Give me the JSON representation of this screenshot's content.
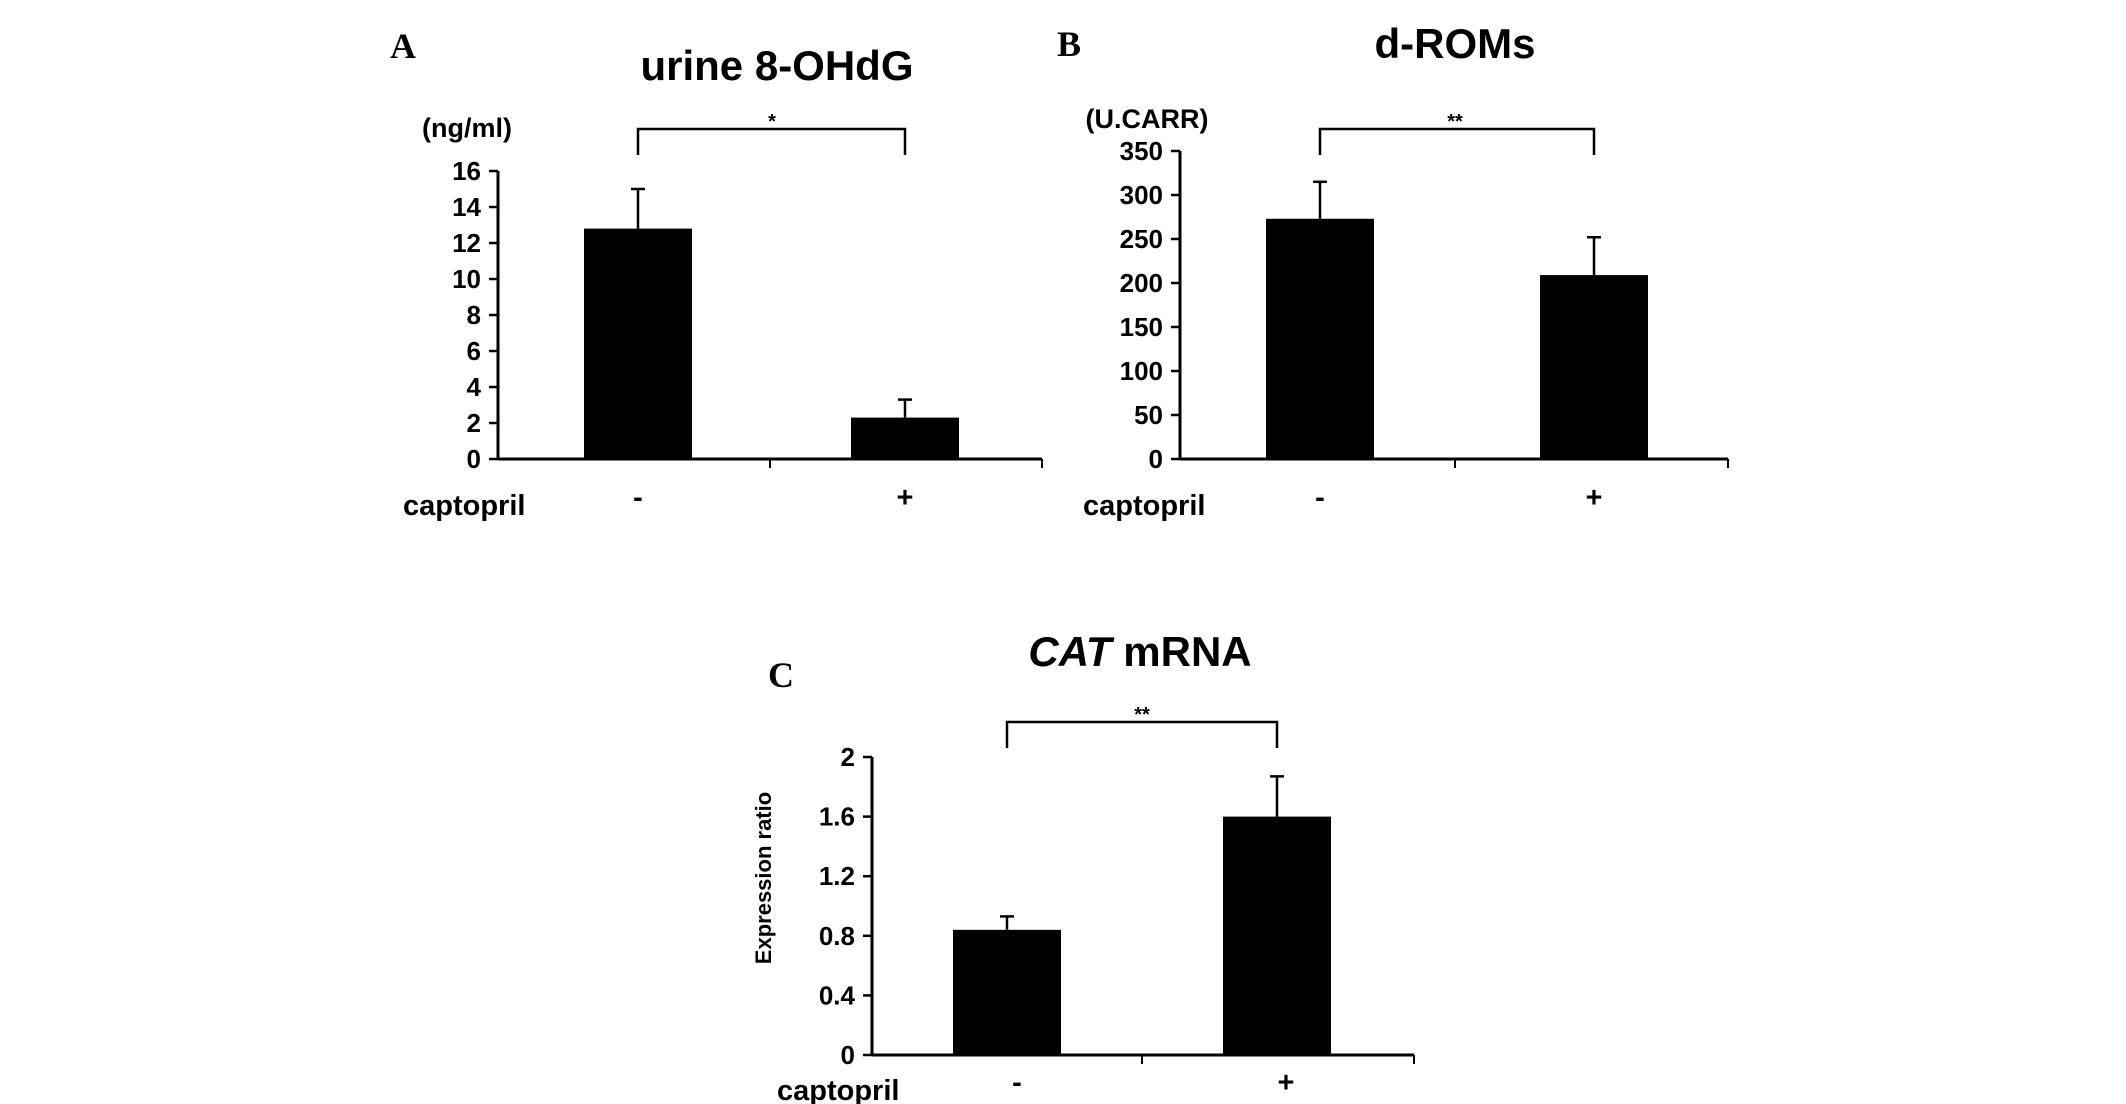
{
  "chart_data": [
    {
      "panel": "A",
      "type": "bar",
      "title": "urine 8-OHdG",
      "unit_label": "(ng/ml)",
      "xlabel": "captopril",
      "ylabel": "",
      "categories": [
        "-",
        "+"
      ],
      "values": [
        12.8,
        2.3
      ],
      "errors": [
        2.2,
        1.0
      ],
      "ylim": [
        0,
        16
      ],
      "yticks": [
        0,
        2,
        4,
        6,
        8,
        10,
        12,
        14,
        16
      ],
      "significance": "*",
      "bar_color": "#000000"
    },
    {
      "panel": "B",
      "type": "bar",
      "title": "d-ROMs",
      "unit_label": "(U.CARR)",
      "xlabel": "captopril",
      "ylabel": "",
      "categories": [
        "-",
        "+"
      ],
      "values": [
        273,
        209
      ],
      "errors": [
        42,
        43
      ],
      "ylim": [
        0,
        350
      ],
      "yticks": [
        0,
        50,
        100,
        150,
        200,
        250,
        300,
        350
      ],
      "significance": "**",
      "bar_color": "#000000"
    },
    {
      "panel": "C",
      "type": "bar",
      "title_italic": "CAT",
      "title_rest": " mRNA",
      "unit_label": "",
      "xlabel": "captopril",
      "ylabel": "Expression ratio",
      "categories": [
        "-",
        "+"
      ],
      "values": [
        0.84,
        1.6
      ],
      "errors": [
        0.09,
        0.27
      ],
      "ylim": [
        0,
        2
      ],
      "yticks": [
        "0",
        "0.4",
        "0.8",
        "1.2",
        "1.6",
        "2"
      ],
      "significance": "**",
      "bar_color": "#000000"
    }
  ]
}
